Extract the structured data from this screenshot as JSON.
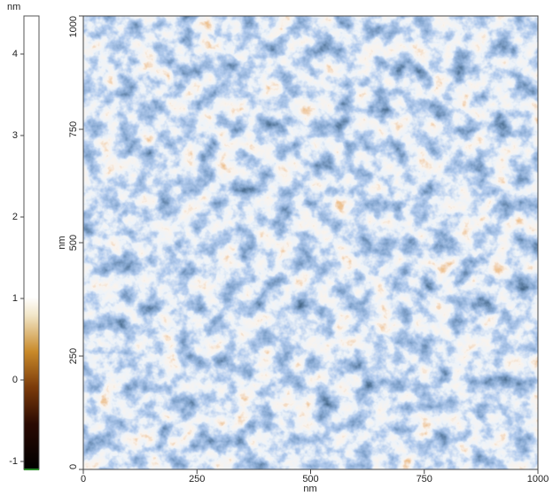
{
  "colorbar": {
    "unit": "nm",
    "ticks": [
      4,
      3,
      2,
      1,
      0,
      -1
    ]
  },
  "x_axis": {
    "label": "nm",
    "ticks": [
      0,
      250,
      500,
      750,
      1000
    ]
  },
  "y_axis": {
    "label": "nm",
    "ticks": [
      0,
      250,
      500,
      750,
      1000
    ]
  }
}
